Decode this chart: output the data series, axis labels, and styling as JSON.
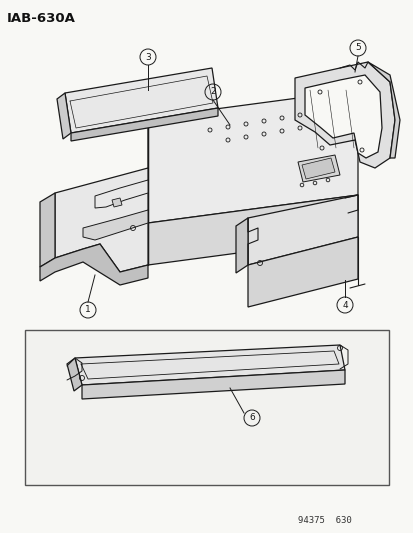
{
  "title": "IAB-630A",
  "bg": "#f8f8f5",
  "lc": "#1a1a1a",
  "catalog": "94375  630",
  "fig_w": 4.14,
  "fig_h": 5.33,
  "dpi": 100
}
